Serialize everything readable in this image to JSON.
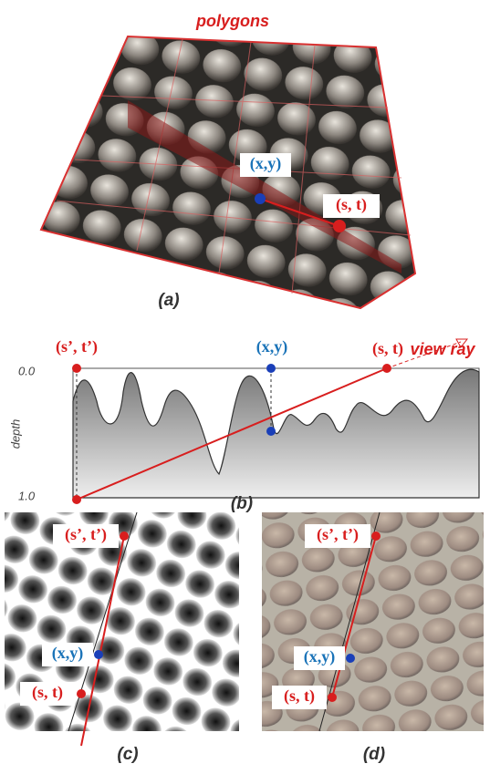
{
  "panel_a": {
    "polygons": "polygons",
    "point_xy": "(x,y)",
    "point_st": "(s, t)",
    "label": "(a)"
  },
  "panel_b": {
    "point_s2t2": "(s’, t’)",
    "point_xy": "(x,y)",
    "point_st": "(s, t)",
    "view_ray": "view ray",
    "depth_top": "0.0",
    "depth_axis": "depth",
    "depth_bottom": "1.0",
    "label": "(b)"
  },
  "panel_c": {
    "point_s2t2": "(s’, t’)",
    "point_xy": "(x,y)",
    "point_st": "(s, t)",
    "label": "(c)"
  },
  "panel_d": {
    "point_s2t2": "(s’, t’)",
    "point_xy": "(x,y)",
    "point_st": "(s, t)",
    "label": "(d)"
  }
}
